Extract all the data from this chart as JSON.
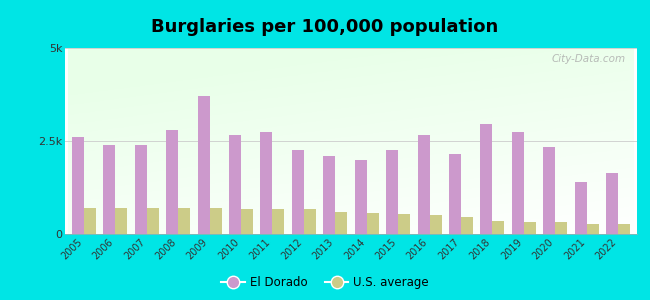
{
  "title": "Burglaries per 100,000 population",
  "years": [
    2005,
    2006,
    2007,
    2008,
    2009,
    2010,
    2011,
    2012,
    2013,
    2014,
    2015,
    2016,
    2017,
    2018,
    2019,
    2020,
    2021,
    2022
  ],
  "el_dorado": [
    2600,
    2400,
    2400,
    2800,
    3700,
    2650,
    2750,
    2250,
    2100,
    2000,
    2250,
    2650,
    2150,
    2950,
    2750,
    2350,
    1400,
    1650
  ],
  "us_average": [
    700,
    690,
    700,
    710,
    710,
    660,
    670,
    660,
    590,
    570,
    540,
    510,
    460,
    350,
    310,
    310,
    260,
    270
  ],
  "bar_color_eldorado": "#cc99cc",
  "bar_color_us": "#cccc88",
  "outer_bg": "#00e5e5",
  "ylim": [
    0,
    5000
  ],
  "yticks": [
    0,
    2500,
    5000
  ],
  "ytick_labels": [
    "0",
    "2.5k",
    "5k"
  ],
  "watermark": "City-Data.com",
  "legend_eldorado": "El Dorado",
  "legend_us": "U.S. average",
  "title_fontsize": 13,
  "bar_width": 0.38
}
